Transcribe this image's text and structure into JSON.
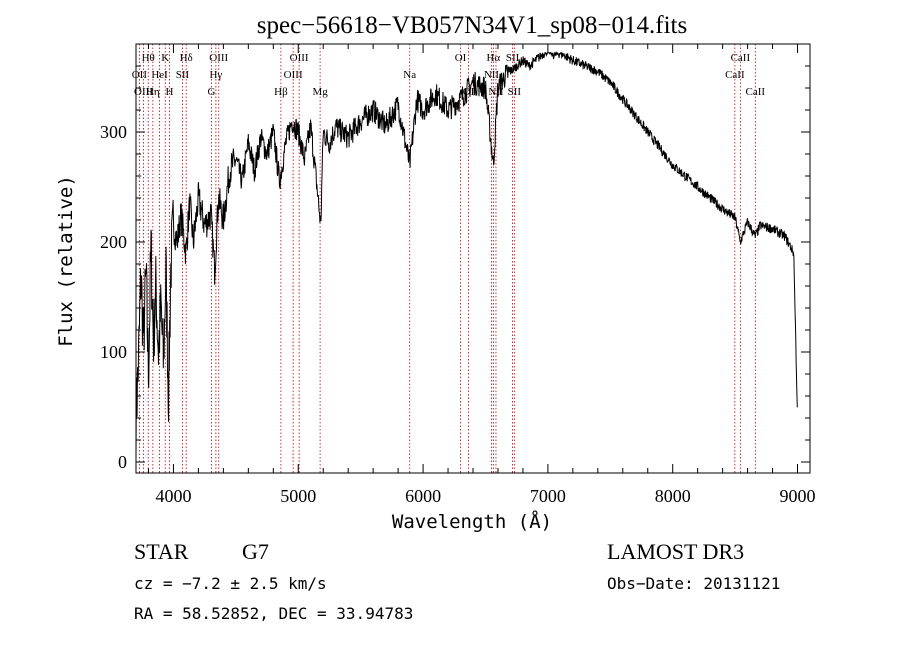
{
  "chart_data": {
    "type": "line",
    "title": "spec−56618−VB057N34V1_sp08−014.fits",
    "xlabel": "Wavelength (Å)",
    "ylabel": "Flux (relative)",
    "xlim": [
      3700,
      9100
    ],
    "ylim": [
      -10,
      380
    ],
    "xticks": [
      4000,
      5000,
      6000,
      7000,
      8000,
      9000
    ],
    "yticks": [
      0,
      100,
      200,
      300
    ],
    "series": [
      {
        "name": "flux",
        "x": [
          3700,
          3720,
          3740,
          3760,
          3780,
          3800,
          3820,
          3840,
          3860,
          3880,
          3900,
          3920,
          3940,
          3960,
          3980,
          4000,
          4030,
          4060,
          4100,
          4130,
          4160,
          4200,
          4250,
          4300,
          4330,
          4360,
          4400,
          4450,
          4500,
          4550,
          4600,
          4650,
          4700,
          4750,
          4800,
          4850,
          4900,
          4950,
          5000,
          5050,
          5100,
          5150,
          5180,
          5200,
          5250,
          5300,
          5400,
          5500,
          5600,
          5700,
          5800,
          5893,
          5950,
          6000,
          6100,
          6200,
          6300,
          6400,
          6500,
          6563,
          6600,
          6650,
          6700,
          6750,
          6800,
          6850,
          6900,
          6950,
          7000,
          7050,
          7100,
          7200,
          7300,
          7400,
          7500,
          7600,
          7700,
          7800,
          7900,
          8000,
          8100,
          8200,
          8300,
          8400,
          8500,
          8542,
          8600,
          8662,
          8700,
          8800,
          8900,
          8970,
          9000
        ],
        "y": [
          40,
          90,
          170,
          110,
          170,
          80,
          195,
          110,
          160,
          100,
          140,
          90,
          175,
          60,
          180,
          215,
          200,
          225,
          190,
          235,
          200,
          240,
          215,
          225,
          175,
          240,
          220,
          265,
          275,
          255,
          290,
          265,
          295,
          280,
          300,
          255,
          290,
          310,
          300,
          275,
          305,
          250,
          215,
          300,
          290,
          305,
          295,
          310,
          320,
          305,
          325,
          270,
          330,
          320,
          335,
          320,
          330,
          345,
          340,
          270,
          340,
          350,
          355,
          360,
          365,
          360,
          365,
          370,
          375,
          370,
          372,
          365,
          360,
          355,
          345,
          330,
          315,
          300,
          285,
          270,
          260,
          250,
          240,
          230,
          222,
          200,
          218,
          205,
          215,
          212,
          205,
          190,
          40
        ]
      }
    ],
    "lines": [
      {
        "name": "Hθ",
        "wl": 3798,
        "row": 0
      },
      {
        "name": "OII",
        "wl": 3727,
        "row": 1
      },
      {
        "name": "OIII",
        "wl": 3760,
        "row": 2
      },
      {
        "name": "K",
        "wl": 3934,
        "row": 0
      },
      {
        "name": "HeI",
        "wl": 3889,
        "row": 1
      },
      {
        "name": "Hη",
        "wl": 3835,
        "row": 2
      },
      {
        "name": "Hδ",
        "wl": 4102,
        "row": 0
      },
      {
        "name": "SII",
        "wl": 4072,
        "row": 1
      },
      {
        "name": "H",
        "wl": 3968,
        "row": 2
      },
      {
        "name": "OIII",
        "wl": 4363,
        "row": 0
      },
      {
        "name": "Hγ",
        "wl": 4340,
        "row": 1
      },
      {
        "name": "G",
        "wl": 4305,
        "row": 2
      },
      {
        "name": "OIII",
        "wl": 5007,
        "row": 0
      },
      {
        "name": "OIII",
        "wl": 4959,
        "row": 1
      },
      {
        "name": "Hβ",
        "wl": 4861,
        "row": 2
      },
      {
        "name": "Mg",
        "wl": 5175,
        "row": 2
      },
      {
        "name": "Na",
        "wl": 5893,
        "row": 1
      },
      {
        "name": "OI",
        "wl": 6300,
        "row": 0
      },
      {
        "name": "OI",
        "wl": 6364,
        "row": 2
      },
      {
        "name": "Hα",
        "wl": 6563,
        "row": 0
      },
      {
        "name": "NII",
        "wl": 6548,
        "row": 1
      },
      {
        "name": "NII",
        "wl": 6584,
        "row": 2
      },
      {
        "name": "SII",
        "wl": 6717,
        "row": 0
      },
      {
        "name": "SII",
        "wl": 6731,
        "row": 2
      },
      {
        "name": "CaII",
        "wl": 8542,
        "row": 0
      },
      {
        "name": "CaII",
        "wl": 8498,
        "row": 1
      },
      {
        "name": "CaII",
        "wl": 8662,
        "row": 2
      }
    ]
  },
  "footer": {
    "class_label": "STAR",
    "subclass": "G7",
    "survey": "LAMOST DR3",
    "cz": "cz = −7.2 ± 2.5 km/s",
    "obs_date": "Obs−Date: 20131121",
    "radec": "RA =  58.52852, DEC =  33.94783"
  }
}
